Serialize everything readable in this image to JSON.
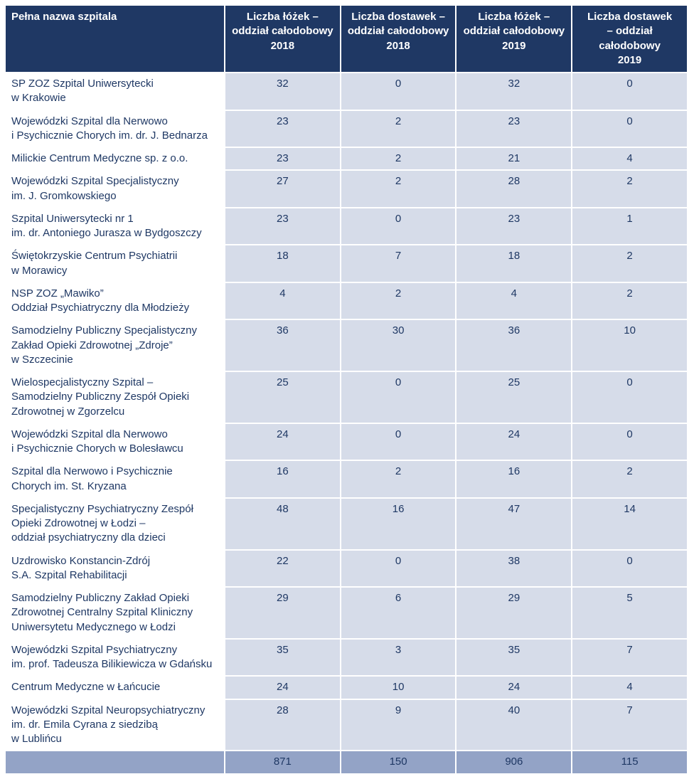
{
  "colors": {
    "header_bg": "#1F3864",
    "header_text": "#FFFFFF",
    "body_text": "#1F3864",
    "value_cell_bg": "#D6DCE9",
    "name_cell_bg": "#FFFFFF",
    "totals_row_bg": "#93A3C6",
    "grid_line": "#FFFFFF"
  },
  "table": {
    "columns": [
      "Pełna nazwa szpitala",
      "Liczba łóżek –\noddział całodobowy\n2018",
      "Liczba dostawek –\noddział całodobowy\n2018",
      "Liczba łóżek –\noddział całodobowy\n2019",
      "Liczba dostawek\n– oddział\ncałodobowy\n2019"
    ],
    "rows": [
      {
        "name": "SP ZOZ Szpital Uniwersytecki\nw Krakowie",
        "values": [
          32,
          0,
          32,
          0
        ]
      },
      {
        "name": "Wojewódzki Szpital dla Nerwowo\ni Psychicznie Chorych im. dr. J. Bednarza",
        "values": [
          23,
          2,
          23,
          0
        ]
      },
      {
        "name": "Milickie Centrum Medyczne sp. z o.o.",
        "values": [
          23,
          2,
          21,
          4
        ]
      },
      {
        "name": "Wojewódzki Szpital Specjalistyczny\nim. J. Gromkowskiego",
        "values": [
          27,
          2,
          28,
          2
        ]
      },
      {
        "name": "Szpital Uniwersytecki nr 1\nim. dr. Antoniego Jurasza w Bydgoszczy",
        "values": [
          23,
          0,
          23,
          1
        ]
      },
      {
        "name": "Świętokrzyskie Centrum Psychiatrii\nw Morawicy",
        "values": [
          18,
          7,
          18,
          2
        ]
      },
      {
        "name": "NSP ZOZ „Mawiko”\nOddział Psychiatryczny dla Młodzieży",
        "values": [
          4,
          2,
          4,
          2
        ]
      },
      {
        "name": "Samodzielny Publiczny Specjalistyczny\nZakład Opieki Zdrowotnej „Zdroje”\nw Szczecinie",
        "values": [
          36,
          30,
          36,
          10
        ]
      },
      {
        "name": "Wielospecjalistyczny Szpital –\nSamodzielny Publiczny Zespół Opieki\nZdrowotnej w Zgorzelcu",
        "values": [
          25,
          0,
          25,
          0
        ]
      },
      {
        "name": "Wojewódzki Szpital dla Nerwowo\ni Psychicznie Chorych w Bolesławcu",
        "values": [
          24,
          0,
          24,
          0
        ]
      },
      {
        "name": "Szpital dla Nerwowo i Psychicznie\nChorych im. St. Kryzana",
        "values": [
          16,
          2,
          16,
          2
        ]
      },
      {
        "name": "Specjalistyczny Psychiatryczny Zespół\nOpieki Zdrowotnej w Łodzi –\noddział psychiatryczny dla dzieci",
        "values": [
          48,
          16,
          47,
          14
        ]
      },
      {
        "name": "Uzdrowisko Konstancin-Zdrój\nS.A. Szpital Rehabilitacji",
        "values": [
          22,
          0,
          38,
          0
        ]
      },
      {
        "name": "Samodzielny Publiczny Zakład Opieki\nZdrowotnej Centralny Szpital Kliniczny\nUniwersytetu Medycznego w Łodzi",
        "values": [
          29,
          6,
          29,
          5
        ]
      },
      {
        "name": "Wojewódzki Szpital Psychiatryczny\nim. prof. Tadeusza Bilikiewicza w Gdańsku",
        "values": [
          35,
          3,
          35,
          7
        ]
      },
      {
        "name": "Centrum Medyczne w Łańcucie",
        "values": [
          24,
          10,
          24,
          4
        ]
      },
      {
        "name": "Wojewódzki Szpital Neuropsychiatryczny\nim. dr. Emila Cyrana z siedzibą\nw Lublińcu",
        "values": [
          28,
          9,
          40,
          7
        ]
      }
    ],
    "totals": [
      871,
      150,
      906,
      115
    ]
  }
}
